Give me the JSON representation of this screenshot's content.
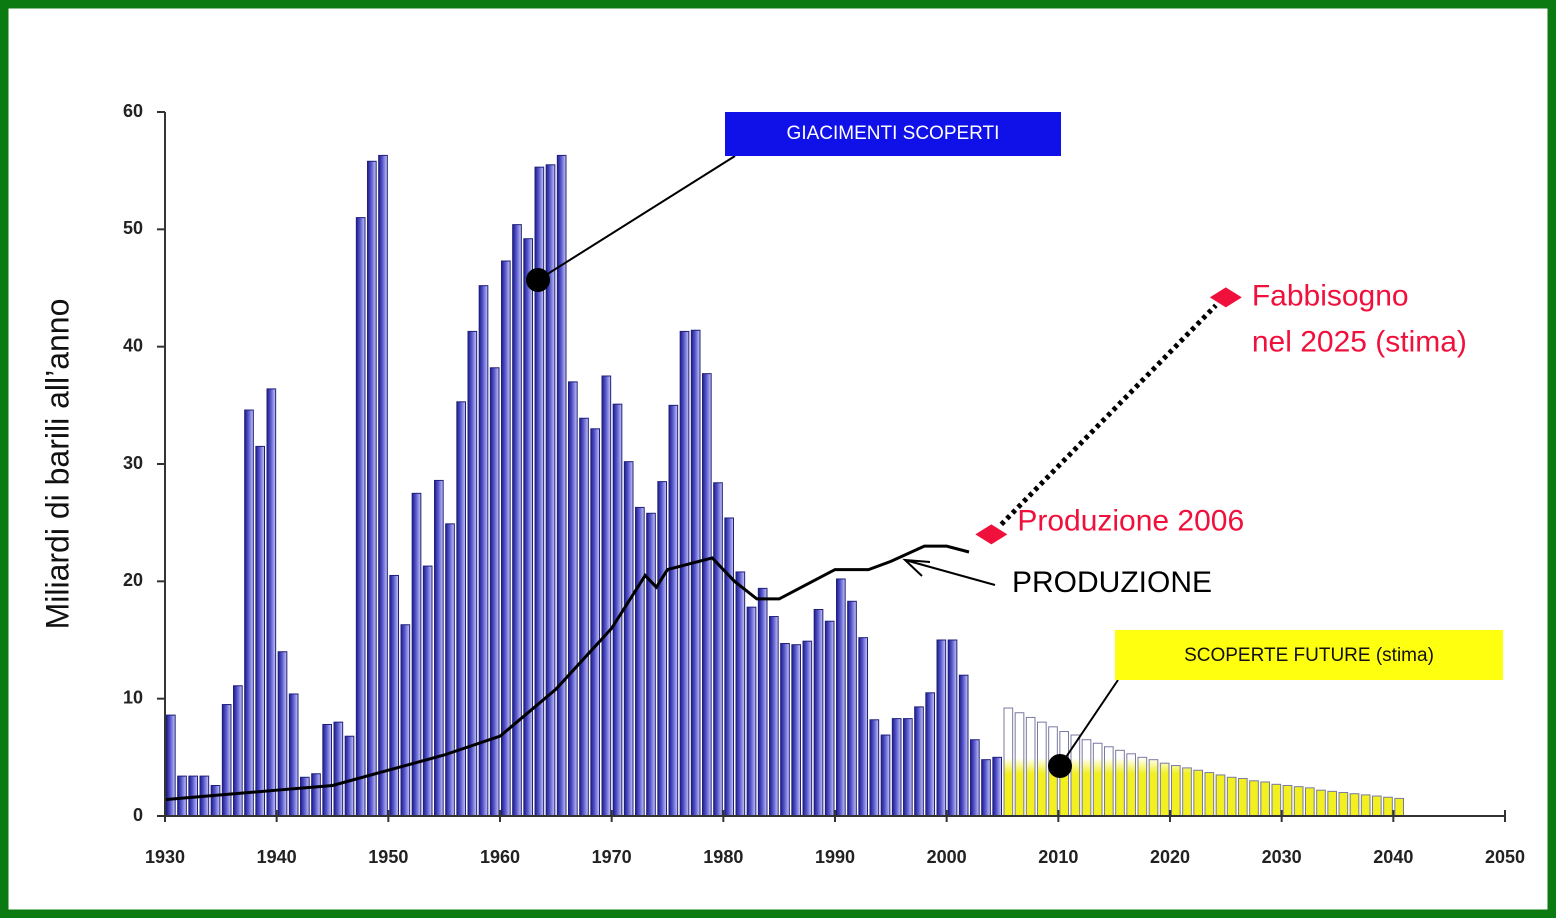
{
  "chart_data": {
    "type": "bar",
    "y_label": "Miliardi di barili all’anno",
    "xlim": [
      1930,
      2050
    ],
    "ylim": [
      0,
      60
    ],
    "xticks": [
      1930,
      1940,
      1950,
      1960,
      1970,
      1980,
      1990,
      2000,
      2010,
      2020,
      2030,
      2040,
      2050
    ],
    "yticks": [
      0,
      10,
      20,
      30,
      40,
      50,
      60
    ],
    "series": [
      {
        "name": "GIACIMENTI SCOPERTI",
        "type": "bar",
        "color": "#3a3aa8",
        "x": [
          1930,
          1931,
          1932,
          1933,
          1934,
          1935,
          1936,
          1937,
          1938,
          1939,
          1940,
          1941,
          1942,
          1943,
          1944,
          1945,
          1946,
          1947,
          1948,
          1949,
          1950,
          1951,
          1952,
          1953,
          1954,
          1955,
          1956,
          1957,
          1958,
          1959,
          1960,
          1961,
          1962,
          1963,
          1964,
          1965,
          1966,
          1967,
          1968,
          1969,
          1970,
          1971,
          1972,
          1973,
          1974,
          1975,
          1976,
          1977,
          1978,
          1979,
          1980,
          1981,
          1982,
          1983,
          1984,
          1985,
          1986,
          1987,
          1988,
          1989,
          1990,
          1991,
          1992,
          1993,
          1994,
          1995,
          1996,
          1997,
          1998,
          1999,
          2000,
          2001,
          2002,
          2003,
          2004
        ],
        "values": [
          8.6,
          3.4,
          3.4,
          3.4,
          2.6,
          9.5,
          11.1,
          34.6,
          31.5,
          36.4,
          14.0,
          10.4,
          3.3,
          3.6,
          7.8,
          8.0,
          6.8,
          51.0,
          55.8,
          56.3,
          20.5,
          16.3,
          27.5,
          21.3,
          28.6,
          24.9,
          35.3,
          41.3,
          45.2,
          38.2,
          47.3,
          50.4,
          49.2,
          55.3,
          55.5,
          56.3,
          37.0,
          33.9,
          33.0,
          37.5,
          35.1,
          30.2,
          26.3,
          25.8,
          28.5,
          35.0,
          41.3,
          41.4,
          37.7,
          28.4,
          25.4,
          20.8,
          17.8,
          19.4,
          17.0,
          14.7,
          14.6,
          14.9,
          17.6,
          16.6,
          20.2,
          18.3,
          15.2,
          8.2,
          6.9,
          8.3,
          8.3,
          9.3,
          10.5,
          15.0,
          15.0,
          12.0,
          6.5,
          4.8,
          5.0
        ]
      },
      {
        "name": "SCOPERTE FUTURE (stima)",
        "type": "bar",
        "color": "#f2f020",
        "x": [
          2005,
          2006,
          2007,
          2008,
          2009,
          2010,
          2011,
          2012,
          2013,
          2014,
          2015,
          2016,
          2017,
          2018,
          2019,
          2020,
          2021,
          2022,
          2023,
          2024,
          2025,
          2026,
          2027,
          2028,
          2029,
          2030,
          2031,
          2032,
          2033,
          2034,
          2035,
          2036,
          2037,
          2038,
          2039,
          2040
        ],
        "values": [
          9.2,
          8.8,
          8.4,
          8.0,
          7.6,
          7.2,
          6.9,
          6.5,
          6.2,
          5.9,
          5.6,
          5.3,
          5.0,
          4.8,
          4.5,
          4.3,
          4.1,
          3.9,
          3.7,
          3.5,
          3.3,
          3.2,
          3.0,
          2.9,
          2.7,
          2.6,
          2.5,
          2.4,
          2.2,
          2.1,
          2.0,
          1.9,
          1.8,
          1.7,
          1.6,
          1.5
        ]
      },
      {
        "name": "PRODUZIONE",
        "type": "line",
        "color": "#000000",
        "x": [
          1930,
          1935,
          1940,
          1945,
          1950,
          1955,
          1960,
          1965,
          1970,
          1973,
          1974,
          1975,
          1979,
          1981,
          1983,
          1985,
          1988,
          1990,
          1993,
          1995,
          1998,
          2000,
          2002
        ],
        "values": [
          1.4,
          1.8,
          2.2,
          2.6,
          3.9,
          5.2,
          6.8,
          10.8,
          16.0,
          20.5,
          19.5,
          21.0,
          22.0,
          20.0,
          18.5,
          18.5,
          20.0,
          21.0,
          21.0,
          21.7,
          23.0,
          23.0,
          22.5
        ]
      },
      {
        "type": "point",
        "color": "#f0103c",
        "x": [
          2004,
          2025
        ],
        "values": [
          24.0,
          44.2
        ],
        "labels": [
          [
            "Produzione 2006"
          ],
          [
            "Fabbisogno",
            "nel 2025 (stima)"
          ]
        ]
      }
    ]
  }
}
